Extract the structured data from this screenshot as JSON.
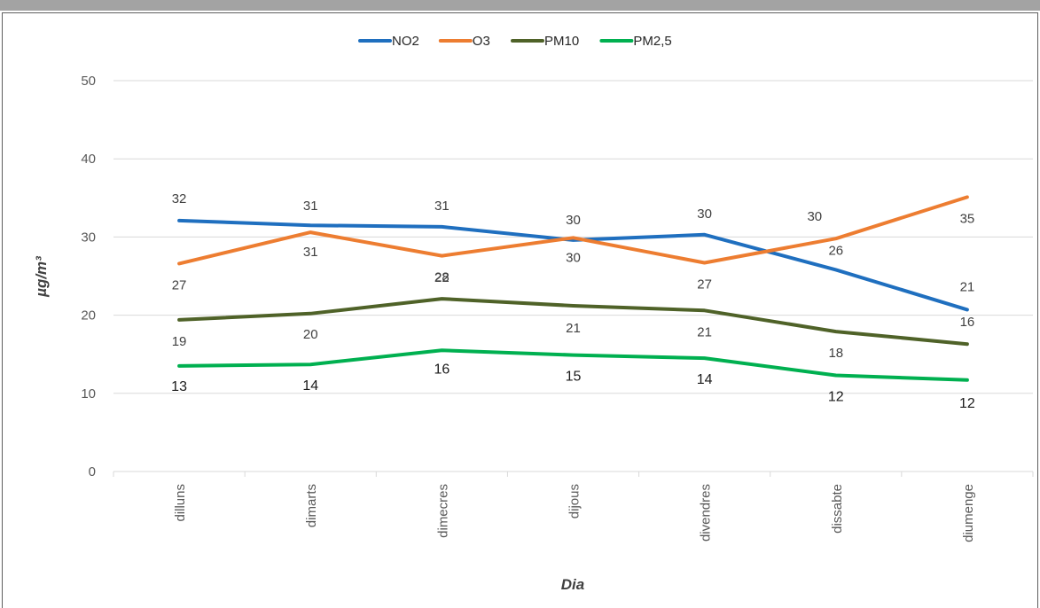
{
  "chart_data": {
    "type": "line",
    "title": "",
    "xlabel": "Dia",
    "ylabel": "µg/m³",
    "ylim": [
      0,
      50
    ],
    "yticks": [
      "0",
      "10",
      "20",
      "30",
      "40",
      "50"
    ],
    "grid": true,
    "legend_position": "top",
    "categories": [
      "dilluns",
      "dimarts",
      "dimecres",
      "dijous",
      "divendres",
      "dissabte",
      "diumenge"
    ],
    "series": [
      {
        "name": "NO2",
        "color": "#1f6fbf",
        "values": [
          32.1,
          31.5,
          31.3,
          29.6,
          30.3,
          25.8,
          20.7
        ],
        "labels": [
          "32",
          "31",
          "31",
          "30",
          "30",
          "26",
          "21"
        ]
      },
      {
        "name": "O3",
        "color": "#ed7d31",
        "values": [
          26.6,
          30.6,
          27.6,
          29.9,
          26.7,
          29.8,
          35.1
        ],
        "labels": [
          "27",
          "31",
          "28",
          "30",
          "27",
          "30",
          "35"
        ]
      },
      {
        "name": "PM10",
        "color": "#4f6228",
        "values": [
          19.4,
          20.2,
          22.1,
          21.2,
          20.6,
          17.9,
          16.3
        ],
        "labels": [
          "19",
          "20",
          "22",
          "21",
          "21",
          "18",
          "16"
        ]
      },
      {
        "name": "PM2,5",
        "color": "#00b050",
        "values": [
          13.5,
          13.7,
          15.5,
          14.9,
          14.5,
          12.3,
          11.7
        ],
        "labels": [
          "13",
          "14",
          "16",
          "15",
          "14",
          "12",
          "12"
        ]
      }
    ]
  }
}
